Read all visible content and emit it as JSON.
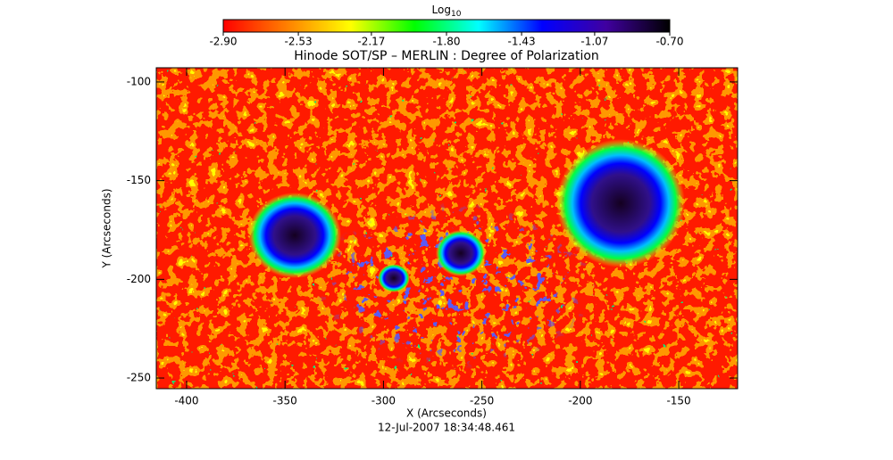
{
  "chart_data": {
    "type": "heatmap",
    "title": "Hinode SOT/SP – MERLIN : Degree of Polarization",
    "xlabel": "X (Arcseconds)",
    "ylabel": "Y (Arcseconds)",
    "footer": "12-Jul-2007 18:34:48.461",
    "xlim": [
      -415.4,
      -120.1
    ],
    "ylim": [
      -255.4,
      -92.8
    ],
    "xticks": [
      -400,
      -350,
      -300,
      -250,
      -200,
      -150
    ],
    "yticks": [
      -250,
      -200,
      -150,
      -100
    ],
    "colorbar": {
      "title": "Log",
      "title_sub": "10",
      "lim": [
        -2.9,
        -0.7
      ],
      "ticks": [
        {
          "value": -2.9,
          "label": "-2.90"
        },
        -2.53,
        -2.17,
        {
          "value": -1.8,
          "label": "-1.80"
        },
        -1.43,
        -1.07,
        {
          "value": -0.7,
          "label": "-0.70"
        }
      ],
      "colors": [
        "#ff0000",
        "#ff8000",
        "#ffff00",
        "#00ff00",
        "#00ffff",
        "#0000ff",
        "#4000a0",
        "#000000"
      ]
    }
  }
}
